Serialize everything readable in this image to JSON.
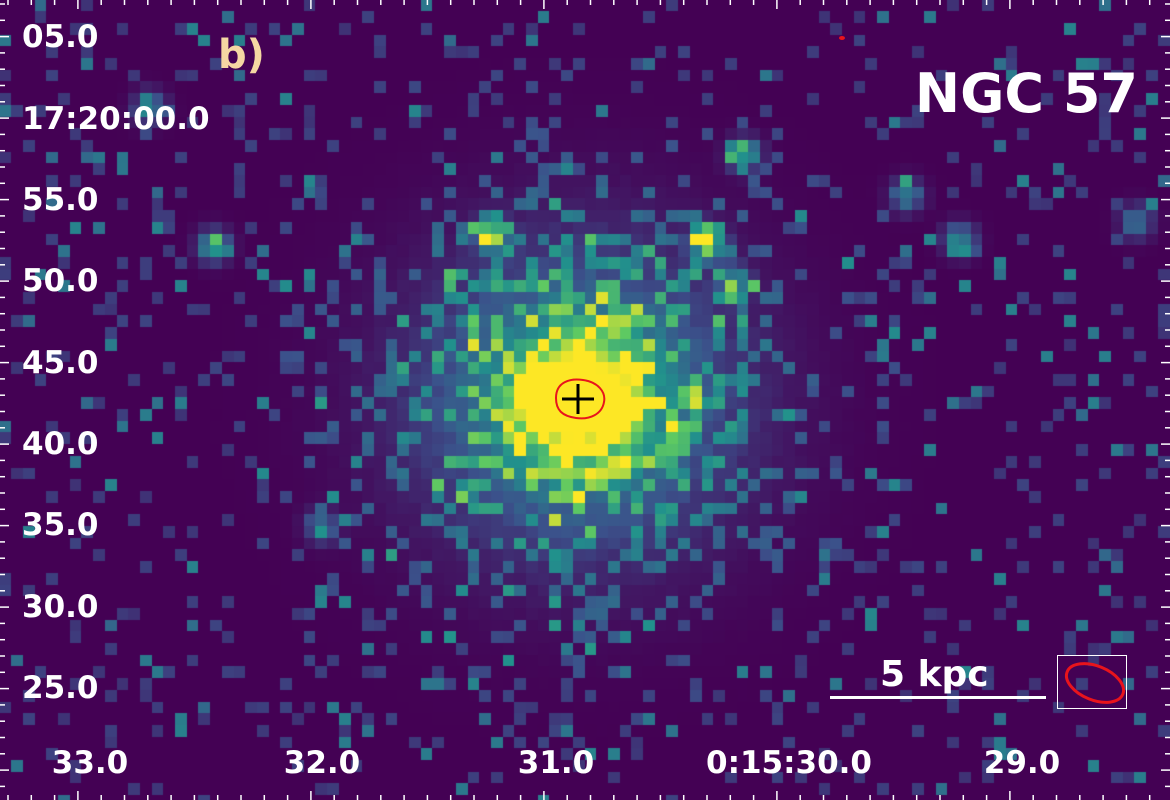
{
  "panel_label": "b)",
  "object_name": "NGC 57",
  "scale_bar_label": "5 kpc",
  "dec_labels": [
    "05.0",
    "17:20:00.0",
    "55.0",
    "50.0",
    "45.0",
    "40.0",
    "35.0",
    "30.0",
    "25.0"
  ],
  "ra_labels": [
    "33.0",
    "32.0",
    "31.0",
    "0:15:30.0",
    "29.0"
  ],
  "colormap": [
    "#440154",
    "#3b528b",
    "#21918c",
    "#5ec962",
    "#fde725"
  ],
  "contour_color": "#e8141c",
  "marker_color": "#000000"
}
